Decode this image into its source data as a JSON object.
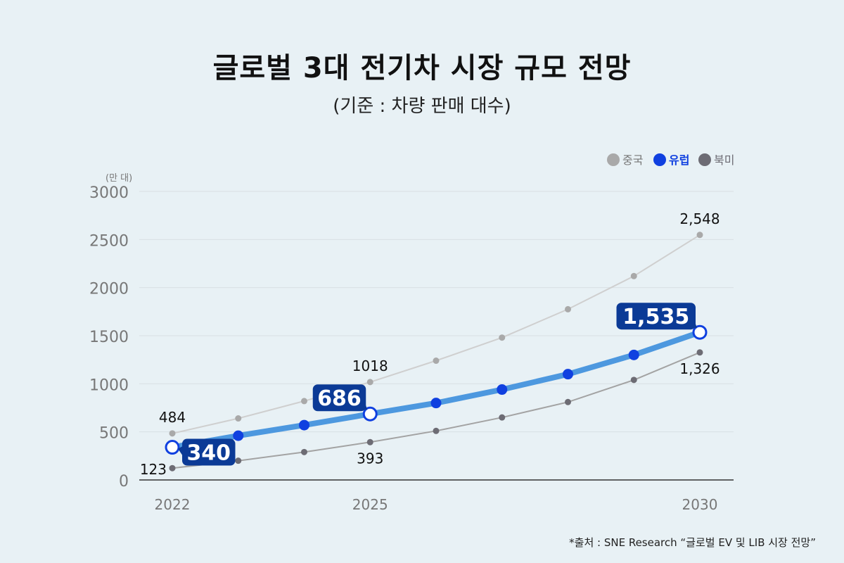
{
  "title": "글로벌 3대 전기차 시장 규모 전망",
  "subtitle": "(기준 : 차량 판매 대수)",
  "source": "*출처 : SNE Research “글로벌 EV 및 LIB 시장 전망”",
  "colors": {
    "china": "#a9a9a9",
    "china_line": "#cfcfcf",
    "europe_line": "#4d98df",
    "europe_point": "#1040e0",
    "europe_label_bg": "#0b3a96",
    "north_america": "#6d6c74",
    "north_america_line": "#a3a3a3",
    "grid": "#d8dfe3",
    "axis": "#333333",
    "tick_text": "#777777"
  },
  "chart_data": {
    "type": "line",
    "title": "글로벌 3대 전기차 시장 규모 전망",
    "subtitle": "(기준 : 차량 판매 대수)",
    "unit_label": "(만 대)",
    "x": [
      2022,
      2023,
      2024,
      2025,
      2026,
      2027,
      2028,
      2029,
      2030
    ],
    "x_tick_labels": [
      "2022",
      "2025",
      "2030"
    ],
    "x_tick_values": [
      2022,
      2025,
      2030
    ],
    "ylim": [
      0,
      3000
    ],
    "y_ticks": [
      0,
      500,
      1000,
      1500,
      2000,
      2500,
      3000
    ],
    "y_tick_labels": [
      "0",
      "500",
      "1000",
      "1500",
      "2000",
      "2500",
      "3000"
    ],
    "legend_position": "top-right",
    "series": [
      {
        "name": "중국",
        "key": "china",
        "values": [
          484,
          640,
          820,
          1018,
          1240,
          1480,
          1775,
          2120,
          2548
        ],
        "labels": [
          {
            "index": 0,
            "text": "484",
            "pos": "above"
          },
          {
            "index": 3,
            "text": "1018",
            "pos": "above"
          },
          {
            "index": 8,
            "text": "2,548",
            "pos": "above"
          }
        ]
      },
      {
        "name": "유럽",
        "key": "europe",
        "values": [
          340,
          460,
          570,
          686,
          800,
          940,
          1100,
          1300,
          1535
        ],
        "labels": [
          {
            "index": 0,
            "text": "340",
            "pos": "box-right"
          },
          {
            "index": 3,
            "text": "686",
            "pos": "box-left"
          },
          {
            "index": 8,
            "text": "1,535",
            "pos": "box-left"
          }
        ]
      },
      {
        "name": "북미",
        "key": "north_america",
        "values": [
          123,
          200,
          290,
          393,
          510,
          650,
          810,
          1040,
          1326
        ],
        "labels": [
          {
            "index": 0,
            "text": "123",
            "pos": "left"
          },
          {
            "index": 3,
            "text": "393",
            "pos": "below"
          },
          {
            "index": 8,
            "text": "1,326",
            "pos": "below"
          }
        ]
      }
    ]
  }
}
